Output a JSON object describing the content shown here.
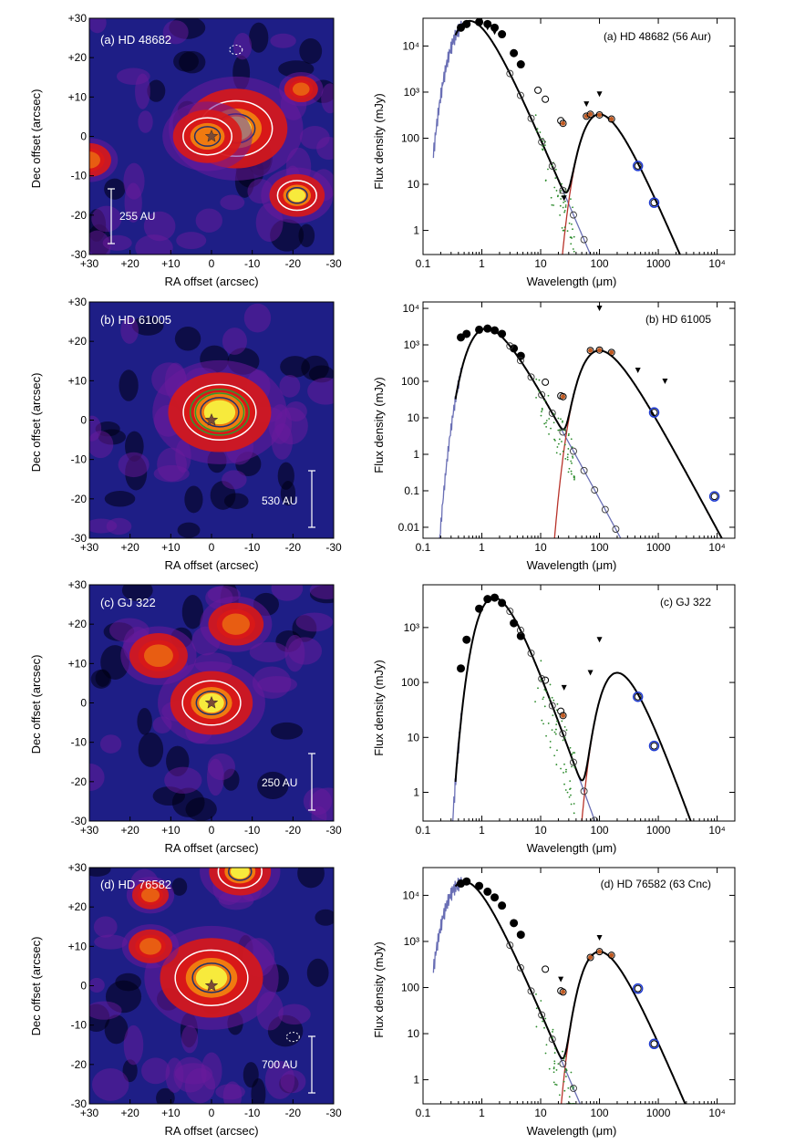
{
  "colors": {
    "map_bg": "#1e1e86",
    "map_dark": "#000014",
    "map_purple": "#6a1a9c",
    "map_red": "#d81818",
    "map_orange": "#f07a10",
    "map_yellow": "#f7ea3c",
    "contour_white": "#ffffff",
    "contour_green": "#2f9a2f",
    "contour_navy": "#23306a",
    "photosphere": "#6a6fb5",
    "disk": "#b8322a",
    "total": "#000000",
    "ir_spectrum": "#2a8a2a",
    "ir_extra": "#c05a22",
    "submm_circle": "#1f3bd1"
  },
  "panels": [
    {
      "map": {
        "title": "(a) HD 48682",
        "scale_label": "255 AU",
        "xlabel": "RA offset (arcsec)",
        "ylabel": "Dec offset (arcsec)",
        "xticks": [
          "+30",
          "+20",
          "+10",
          "0",
          "-10",
          "-20",
          "-30"
        ],
        "yticks": [
          "+30",
          "+20",
          "+10",
          "0",
          "-10",
          "-20",
          "-30"
        ],
        "star_offset": [
          0,
          0
        ]
      },
      "sed": {
        "title": "(a) HD 48682 (56 Aur)",
        "xlabel": "Wavelength (μm)",
        "ylabel": "Flux density (mJy)",
        "xticks": [
          "0.1",
          "1",
          "10",
          "100",
          "1000",
          "10⁴"
        ],
        "yticks": [
          "1",
          "10",
          "100",
          "10³",
          "10⁴"
        ],
        "ylim": [
          0.3,
          40000
        ],
        "xlim": [
          0.1,
          20000
        ]
      }
    },
    {
      "map": {
        "title": "(b) HD 61005",
        "scale_label": "530 AU",
        "xlabel": "RA offset (arcsec)",
        "ylabel": "Dec offset (arcsec)",
        "xticks": [
          "+30",
          "+20",
          "+10",
          "0",
          "-10",
          "-20",
          "-30"
        ],
        "yticks": [
          "+30",
          "+20",
          "+10",
          "0",
          "-10",
          "-20",
          "-30"
        ],
        "star_offset": [
          0,
          0
        ]
      },
      "sed": {
        "title": "(b) HD 61005",
        "xlabel": "Wavelength (μm)",
        "ylabel": "Flux density (mJy)",
        "xticks": [
          "0.1",
          "1",
          "10",
          "100",
          "1000",
          "10⁴"
        ],
        "yticks": [
          "0.01",
          "0.1",
          "1",
          "10",
          "100",
          "10³",
          "10⁴"
        ],
        "ylim": [
          0.005,
          15000
        ],
        "xlim": [
          0.1,
          20000
        ]
      }
    },
    {
      "map": {
        "title": "(c) GJ 322",
        "scale_label": "250 AU",
        "xlabel": "RA offset (arcsec)",
        "ylabel": "Dec offset (arcsec)",
        "xticks": [
          "+30",
          "+20",
          "+10",
          "0",
          "-10",
          "-20",
          "-30"
        ],
        "yticks": [
          "+30",
          "+20",
          "+10",
          "0",
          "-10",
          "-20",
          "-30"
        ],
        "star_offset": [
          0,
          0
        ]
      },
      "sed": {
        "title": "(c) GJ 322",
        "xlabel": "Wavelength (μm)",
        "ylabel": "Flux density (mJy)",
        "xticks": [
          "0.1",
          "1",
          "10",
          "100",
          "1000",
          "10⁴"
        ],
        "yticks": [
          "1",
          "10",
          "100",
          "10³"
        ],
        "ylim": [
          0.3,
          6000
        ],
        "xlim": [
          0.1,
          20000
        ]
      }
    },
    {
      "map": {
        "title": "(d) HD 76582",
        "scale_label": "700 AU",
        "xlabel": "RA offset (arcsec)",
        "ylabel": "Dec offset (arcsec)",
        "xticks": [
          "+30",
          "+20",
          "+10",
          "0",
          "-10",
          "-20",
          "-30"
        ],
        "yticks": [
          "+30",
          "+20",
          "+10",
          "0",
          "-10",
          "-20",
          "-30"
        ],
        "star_offset": [
          0,
          0
        ]
      },
      "sed": {
        "title": "(d) HD 76582 (63 Cnc)",
        "xlabel": "Wavelength (μm)",
        "ylabel": "Flux density (mJy)",
        "xticks": [
          "0.1",
          "1",
          "10",
          "100",
          "1000",
          "10⁴"
        ],
        "yticks": [
          "1",
          "10",
          "100",
          "10³",
          "10⁴"
        ],
        "ylim": [
          0.3,
          40000
        ],
        "xlim": [
          0.1,
          20000
        ]
      }
    }
  ],
  "chart_data": [
    {
      "type": "heatmap",
      "title": "(a) HD 48682",
      "xlabel": "RA offset (arcsec)",
      "ylabel": "Dec offset (arcsec)",
      "xlim": [
        30,
        -30
      ],
      "ylim": [
        -30,
        30
      ],
      "scale_bar": "255 AU",
      "peaks": [
        {
          "x": -6,
          "y": 2,
          "sigma": 5,
          "amp": 1.0
        },
        {
          "x": 1,
          "y": 0,
          "sigma": 4,
          "amp": 0.7
        },
        {
          "x": -21,
          "y": -15,
          "sigma": 3,
          "amp": 0.8
        },
        {
          "x": 30,
          "y": -6,
          "sigma": 3,
          "amp": 0.5
        },
        {
          "x": -22,
          "y": 12,
          "sigma": 3,
          "amp": 0.3
        }
      ]
    },
    {
      "type": "line",
      "title": "(a) HD 48682 (56 Aur)",
      "xlabel": "Wavelength (μm)",
      "ylabel": "Flux density (mJy)",
      "xscale": "log",
      "yscale": "log",
      "xlim": [
        0.1,
        20000
      ],
      "ylim": [
        0.3,
        40000
      ],
      "star": {
        "peak_wavelength": 0.62,
        "peak_flux": 35000
      },
      "disk": {
        "peak_wavelength": 100,
        "peak_flux": 330
      },
      "series": [
        {
          "name": "photometry",
          "x": [
            0.44,
            0.55,
            0.9,
            1.25,
            1.65,
            2.2,
            3.5,
            4.6,
            9,
            12,
            22,
            24,
            60,
            70,
            100,
            160,
            450,
            850
          ],
          "y": [
            25000,
            30000,
            33000,
            30000,
            25000,
            18000,
            7000,
            4000,
            1100,
            700,
            240,
            210,
            300,
            330,
            320,
            260,
            25,
            4
          ]
        },
        {
          "name": "upper limits",
          "x": [
            1.25,
            1.65,
            25,
            60,
            100
          ],
          "y": [
            25000,
            20000,
            5,
            550,
            900
          ]
        }
      ]
    },
    {
      "type": "heatmap",
      "title": "(b) HD 61005",
      "xlabel": "RA offset (arcsec)",
      "ylabel": "Dec offset (arcsec)",
      "xlim": [
        30,
        -30
      ],
      "ylim": [
        -30,
        30
      ],
      "scale_bar": "530 AU",
      "peaks": [
        {
          "x": -2,
          "y": 2,
          "sigma": 5,
          "amp": 1.0
        }
      ]
    },
    {
      "type": "line",
      "title": "(b) HD 61005",
      "xlabel": "Wavelength (μm)",
      "ylabel": "Flux density (mJy)",
      "xscale": "log",
      "yscale": "log",
      "xlim": [
        0.1,
        20000
      ],
      "ylim": [
        0.005,
        15000
      ],
      "star": {
        "peak_wavelength": 1.2,
        "peak_flux": 2800
      },
      "disk": {
        "peak_wavelength": 100,
        "peak_flux": 700
      },
      "series": [
        {
          "name": "photometry",
          "x": [
            0.44,
            0.55,
            0.9,
            1.25,
            1.65,
            2.2,
            3.5,
            4.6,
            12,
            22,
            24,
            70,
            100,
            160,
            850,
            9000
          ],
          "y": [
            1600,
            2000,
            2600,
            2800,
            2500,
            2000,
            800,
            500,
            95,
            40,
            38,
            700,
            720,
            620,
            14,
            0.07
          ]
        },
        {
          "name": "upper limits",
          "x": [
            100,
            450,
            1300
          ],
          "y": [
            10000,
            200,
            100
          ]
        }
      ]
    },
    {
      "type": "heatmap",
      "title": "(c) GJ 322",
      "xlabel": "RA offset (arcsec)",
      "ylabel": "Dec offset (arcsec)",
      "xlim": [
        30,
        -30
      ],
      "ylim": [
        -30,
        30
      ],
      "scale_bar": "250 AU",
      "peaks": [
        {
          "x": 0,
          "y": 0,
          "sigma": 4,
          "amp": 1.0
        },
        {
          "x": 13,
          "y": 12,
          "sigma": 4,
          "amp": 0.5
        },
        {
          "x": -6,
          "y": 20,
          "sigma": 4,
          "amp": 0.45
        }
      ]
    },
    {
      "type": "line",
      "title": "(c) GJ 322",
      "xlabel": "Wavelength (μm)",
      "ylabel": "Flux density (mJy)",
      "xscale": "log",
      "yscale": "log",
      "xlim": [
        0.1,
        20000
      ],
      "ylim": [
        0.3,
        6000
      ],
      "star": {
        "peak_wavelength": 1.6,
        "peak_flux": 3500
      },
      "disk": {
        "peak_wavelength": 200,
        "peak_flux": 150
      },
      "series": [
        {
          "name": "photometry",
          "x": [
            0.44,
            0.55,
            0.9,
            1.25,
            1.65,
            2.2,
            3.5,
            4.6,
            12,
            22,
            24,
            450,
            850
          ],
          "y": [
            180,
            600,
            2200,
            3300,
            3500,
            2800,
            1200,
            700,
            110,
            30,
            25,
            55,
            7
          ]
        },
        {
          "name": "upper limits",
          "x": [
            25,
            70,
            100
          ],
          "y": [
            80,
            150,
            600
          ]
        }
      ]
    },
    {
      "type": "heatmap",
      "title": "(d) HD 76582",
      "xlabel": "RA offset (arcsec)",
      "ylabel": "Dec offset (arcsec)",
      "xlim": [
        30,
        -30
      ],
      "ylim": [
        -30,
        30
      ],
      "scale_bar": "700 AU",
      "peaks": [
        {
          "x": 0,
          "y": 2,
          "sigma": 5,
          "amp": 1.0
        },
        {
          "x": -7,
          "y": 29,
          "sigma": 3,
          "amp": 1.0
        },
        {
          "x": 15,
          "y": 10,
          "sigma": 3,
          "amp": 0.5
        },
        {
          "x": 15,
          "y": 23,
          "sigma": 3,
          "amp": 0.35
        }
      ]
    },
    {
      "type": "line",
      "title": "(d) HD 76582 (63 Cnc)",
      "xlabel": "Wavelength (μm)",
      "ylabel": "Flux density (mJy)",
      "xscale": "log",
      "yscale": "log",
      "xlim": [
        0.1,
        20000
      ],
      "ylim": [
        0.3,
        40000
      ],
      "star": {
        "peak_wavelength": 0.5,
        "peak_flux": 20000
      },
      "disk": {
        "peak_wavelength": 100,
        "peak_flux": 600
      },
      "series": [
        {
          "name": "photometry",
          "x": [
            0.44,
            0.55,
            0.9,
            1.25,
            1.65,
            2.2,
            3.5,
            4.6,
            12,
            22,
            24,
            70,
            100,
            160,
            450,
            850
          ],
          "y": [
            18000,
            20000,
            16000,
            12000,
            9000,
            6000,
            2500,
            1400,
            250,
            85,
            80,
            450,
            600,
            500,
            95,
            6
          ]
        },
        {
          "name": "upper limits",
          "x": [
            22,
            100
          ],
          "y": [
            150,
            1200
          ]
        }
      ]
    }
  ]
}
